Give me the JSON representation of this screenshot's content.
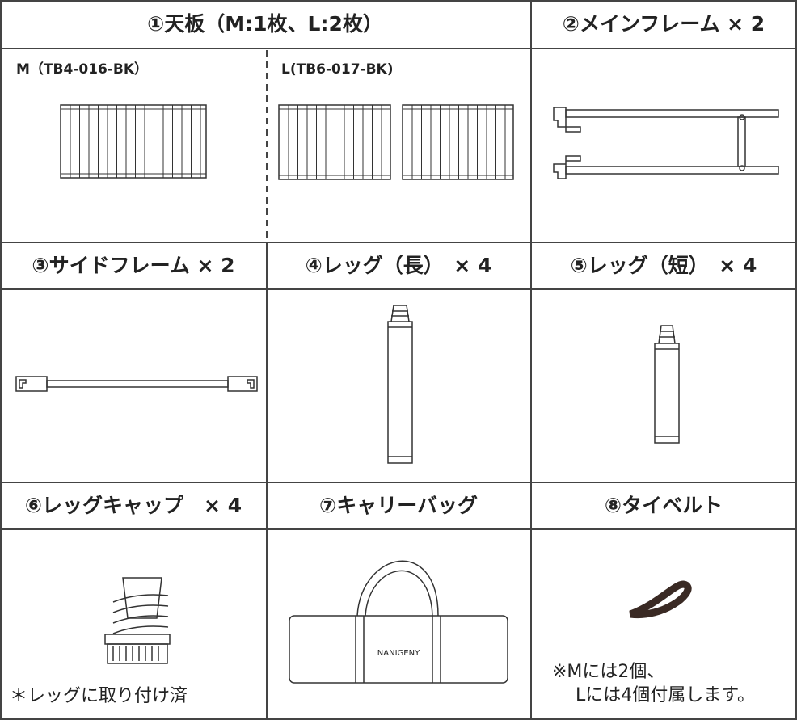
{
  "parts": [
    {
      "title": "①天板（M:1枚、L:2枚）",
      "variants": [
        "M（TB4-016-BK）",
        "L(TB6-017-BK)"
      ]
    },
    {
      "title": "②メインフレーム × 2"
    },
    {
      "title": "③サイドフレーム × 2"
    },
    {
      "title": "④レッグ（長）　× 4"
    },
    {
      "title": "⑤レッグ（短）　× 4"
    },
    {
      "title": "⑥レッグキャップ　× 4",
      "note": "＊レッグに取り付け済"
    },
    {
      "title": "⑦キャリーバッグ",
      "brand": "NANIGENY"
    },
    {
      "title": "⑧タイベルト",
      "note_lines": [
        "※Mには2個、",
        "Lには4個付属します。"
      ]
    }
  ]
}
